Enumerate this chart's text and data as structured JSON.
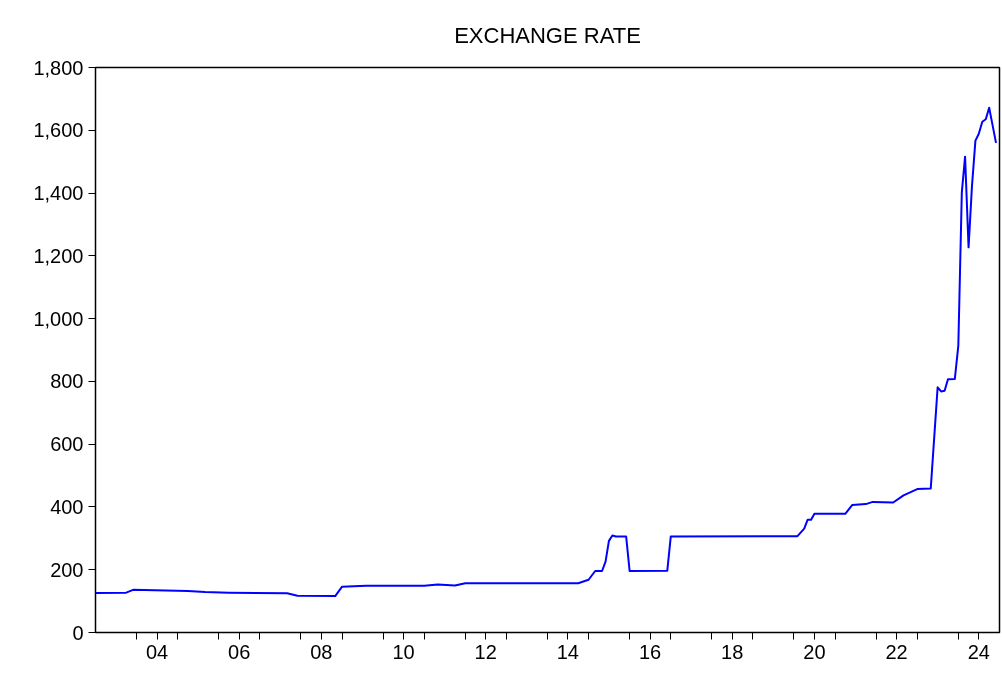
{
  "chart_data": {
    "type": "line",
    "title": "EXCHANGE RATE",
    "x": [
      "2003-01",
      "2003-10",
      "2003-12",
      "2005-04",
      "2005-09",
      "2006-04",
      "2007-09",
      "2007-12",
      "2008-11",
      "2009-01",
      "2009-08",
      "2011-01",
      "2011-05",
      "2011-10",
      "2012-01",
      "2014-10",
      "2015-01",
      "2015-03",
      "2015-05",
      "2015-06",
      "2015-07",
      "2015-08",
      "2015-09",
      "2015-12",
      "2016-01",
      "2016-12",
      "2017-01",
      "2020-02",
      "2020-04",
      "2020-05",
      "2020-06",
      "2020-07",
      "2021-04",
      "2021-06",
      "2021-10",
      "2021-12",
      "2022-06",
      "2022-09",
      "2023-01",
      "2023-05",
      "2023-07",
      "2023-08",
      "2023-09",
      "2023-10",
      "2023-12",
      "2024-01",
      "2024-02",
      "2024-03",
      "2024-04",
      "2024-05",
      "2024-06",
      "2024-07",
      "2024-08",
      "2024-09",
      "2024-10",
      "2024-12"
    ],
    "series": [
      {
        "color": "#0000ff",
        "values": [
          126,
          127,
          136,
          132,
          129,
          127,
          125,
          117,
          116,
          146,
          149,
          149,
          153,
          150,
          157,
          157,
          168,
          196,
          196,
          226,
          292,
          309,
          306,
          306,
          196,
          197,
          306,
          307,
          331,
          359,
          359,
          378,
          378,
          406,
          409,
          416,
          414,
          437,
          457,
          459,
          781,
          768,
          770,
          807,
          808,
          914,
          1402,
          1516,
          1227,
          1421,
          1567,
          1589,
          1627,
          1635,
          1672,
          1560
        ]
      }
    ],
    "xlim": [
      "2003-01",
      "2025-01"
    ],
    "xticks": [
      {
        "value": "2004",
        "label": null
      },
      {
        "value": "2004-07",
        "label": "04"
      },
      {
        "value": "2005",
        "label": null
      },
      {
        "value": "2006",
        "label": null
      },
      {
        "value": "2006-07",
        "label": "06"
      },
      {
        "value": "2007",
        "label": null
      },
      {
        "value": "2008",
        "label": null
      },
      {
        "value": "2008-07",
        "label": "08"
      },
      {
        "value": "2009",
        "label": null
      },
      {
        "value": "2010",
        "label": null
      },
      {
        "value": "2010-07",
        "label": "10"
      },
      {
        "value": "2011",
        "label": null
      },
      {
        "value": "2012",
        "label": null
      },
      {
        "value": "2012-07",
        "label": "12"
      },
      {
        "value": "2013",
        "label": null
      },
      {
        "value": "2014",
        "label": null
      },
      {
        "value": "2014-07",
        "label": "14"
      },
      {
        "value": "2015",
        "label": null
      },
      {
        "value": "2016",
        "label": null
      },
      {
        "value": "2016-07",
        "label": "16"
      },
      {
        "value": "2017",
        "label": null
      },
      {
        "value": "2018",
        "label": null
      },
      {
        "value": "2018-07",
        "label": "18"
      },
      {
        "value": "2019",
        "label": null
      },
      {
        "value": "2020",
        "label": null
      },
      {
        "value": "2020-07",
        "label": "20"
      },
      {
        "value": "2021",
        "label": null
      },
      {
        "value": "2022",
        "label": null
      },
      {
        "value": "2022-07",
        "label": "22"
      },
      {
        "value": "2023",
        "label": null
      },
      {
        "value": "2024",
        "label": null
      },
      {
        "value": "2024-07",
        "label": "24"
      }
    ],
    "ylim": [
      0,
      1800
    ],
    "yticks": [
      0,
      200,
      400,
      600,
      800,
      {
        "value": 1000,
        "label": "1,000"
      },
      {
        "value": 1200,
        "label": "1,200"
      },
      {
        "value": 1400,
        "label": "1,400"
      },
      {
        "value": 1600,
        "label": "1,600"
      },
      {
        "value": 1800,
        "label": "1,800"
      }
    ],
    "grid": false,
    "line_style": "solid"
  }
}
